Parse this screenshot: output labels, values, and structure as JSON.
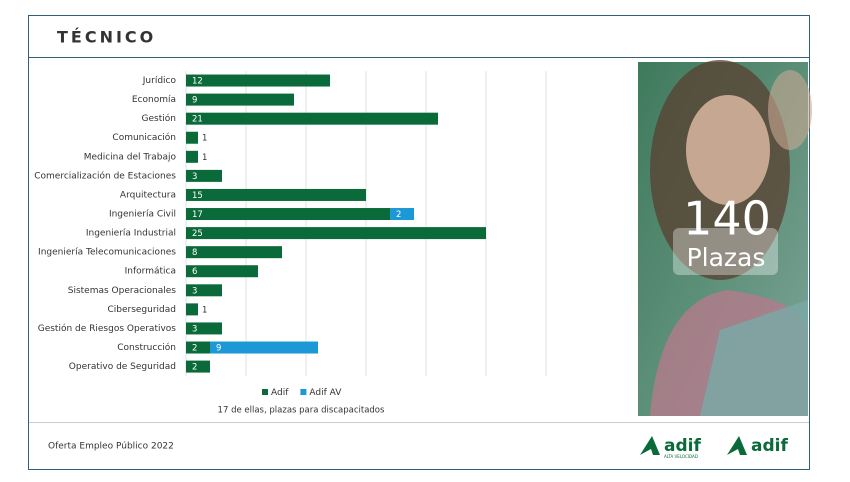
{
  "header": {
    "title": "TÉCNICO"
  },
  "chart_data": {
    "type": "bar",
    "orientation": "horizontal",
    "categories": [
      "Jurídico",
      "Economía",
      "Gestión",
      "Comunicación",
      "Medicina del Trabajo",
      "Comercialización de Estaciones",
      "Arquitectura",
      "Ingeniería Civil",
      "Ingeniería Industrial",
      "Ingeniería Telecomunicaciones",
      "Informática",
      "Sistemas Operacionales",
      "Ciberseguridad",
      "Gestión de Riesgos Operativos",
      "Construcción",
      "Operativo de Seguridad"
    ],
    "series": [
      {
        "name": "Adif",
        "color": "#0b6a3a",
        "values": [
          12,
          9,
          21,
          1,
          1,
          3,
          15,
          17,
          25,
          8,
          6,
          3,
          1,
          3,
          2,
          2
        ]
      },
      {
        "name": "Adif AV",
        "color": "#1b98d5",
        "values": [
          null,
          null,
          null,
          null,
          null,
          null,
          null,
          2,
          null,
          null,
          null,
          null,
          null,
          null,
          9,
          null
        ]
      }
    ],
    "xlim": [
      0,
      35
    ],
    "xticks": [
      0,
      5,
      10,
      15,
      20,
      25,
      30
    ],
    "grid": true,
    "legend": "bottom",
    "note": "17 de ellas, plazas para discapacitados"
  },
  "panel": {
    "total": 140,
    "label": "Plazas"
  },
  "footer": {
    "text": "Oferta Empleo Público 2022",
    "logos": [
      {
        "name": "adif",
        "subtitle": "ALTA VELOCIDAD"
      },
      {
        "name": "adif"
      }
    ]
  }
}
